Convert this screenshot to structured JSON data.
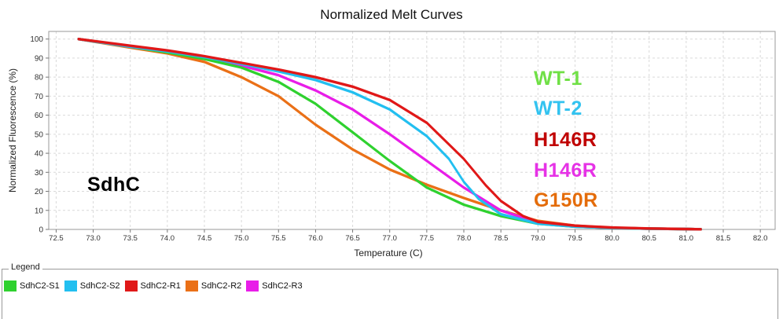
{
  "chart_data": {
    "type": "line",
    "title": "Normalized Melt Curves",
    "xlabel": "Temperature (C)",
    "ylabel": "Normalized Fluorescence (%)",
    "xlim": [
      72.4,
      82.2
    ],
    "ylim": [
      0,
      104
    ],
    "xticks": [
      "72.5",
      "73.0",
      "73.5",
      "74.0",
      "74.5",
      "75.0",
      "75.5",
      "76.0",
      "76.5",
      "77.0",
      "77.5",
      "78.0",
      "78.5",
      "79.0",
      "79.5",
      "80.0",
      "80.5",
      "81.0",
      "81.5",
      "82.0"
    ],
    "yticks": [
      "0",
      "10",
      "20",
      "30",
      "40",
      "50",
      "60",
      "70",
      "80",
      "90",
      "100"
    ],
    "grid": true,
    "series": [
      {
        "name": "SdhC2-S1",
        "color": "#2fd12f",
        "x": [
          72.8,
          73.5,
          74.0,
          74.5,
          75.0,
          75.5,
          76.0,
          76.5,
          77.0,
          77.5,
          78.0,
          78.5,
          79.0,
          79.5,
          80.0,
          80.5,
          81.0,
          81.2
        ],
        "y": [
          100,
          96,
          93,
          89.5,
          85,
          77.5,
          66,
          51,
          36,
          22,
          13,
          7,
          3,
          1.5,
          0.8,
          0.4,
          0.2,
          0.1
        ]
      },
      {
        "name": "SdhC2-S2",
        "color": "#22bff0",
        "x": [
          72.8,
          73.5,
          74.0,
          74.5,
          75.0,
          75.5,
          76.0,
          76.5,
          77.0,
          77.5,
          77.8,
          78.0,
          78.2,
          78.5,
          79.0,
          79.5,
          80.0,
          80.5,
          81.0,
          81.2
        ],
        "y": [
          100,
          96,
          93.5,
          90.5,
          87,
          83,
          78.5,
          72,
          63,
          49,
          37,
          25,
          16,
          8,
          3,
          1.5,
          0.8,
          0.4,
          0.2,
          0.1
        ]
      },
      {
        "name": "SdhC2-R1",
        "color": "#e01818",
        "x": [
          72.8,
          73.5,
          74.0,
          74.5,
          75.0,
          75.5,
          76.0,
          76.5,
          77.0,
          77.5,
          78.0,
          78.3,
          78.5,
          78.8,
          79.0,
          79.5,
          80.0,
          80.5,
          81.0,
          81.2
        ],
        "y": [
          100,
          96.5,
          94,
          91,
          87.5,
          84,
          80,
          75,
          68,
          56,
          37,
          23,
          15,
          7,
          4,
          2,
          1,
          0.5,
          0.2,
          0.1
        ]
      },
      {
        "name": "SdhC2-R2",
        "color": "#ea7017",
        "x": [
          72.8,
          73.5,
          74.0,
          74.5,
          75.0,
          75.5,
          76.0,
          76.5,
          77.0,
          77.5,
          78.0,
          78.5,
          79.0,
          79.5,
          80.0,
          80.5,
          81.0,
          81.2
        ],
        "y": [
          100,
          95.5,
          92.5,
          88,
          80,
          70,
          55,
          42,
          31.5,
          23.5,
          16.5,
          10,
          4.5,
          2,
          0.8,
          0.4,
          0.2,
          0.1
        ]
      },
      {
        "name": "SdhC2-R3",
        "color": "#e81de8",
        "x": [
          72.8,
          73.5,
          74.0,
          74.5,
          75.0,
          75.5,
          76.0,
          76.5,
          77.0,
          77.5,
          78.0,
          78.5,
          79.0,
          79.5,
          80.0,
          80.5,
          81.0,
          81.2
        ],
        "y": [
          100,
          96,
          93.5,
          90,
          86,
          81,
          73,
          63,
          50,
          36,
          22,
          10,
          3.5,
          1.5,
          0.8,
          0.4,
          0.2,
          0.1
        ]
      }
    ],
    "annotations": [
      {
        "text": "SdhC",
        "color": "#000000"
      },
      {
        "text": "WT-1",
        "color": "#70e046"
      },
      {
        "text": "WT-2",
        "color": "#33c3f0"
      },
      {
        "text": "H146R",
        "color": "#c00000"
      },
      {
        "text": "H146R",
        "color": "#e632e6"
      },
      {
        "text": "G150R",
        "color": "#e46c0a"
      }
    ]
  },
  "legend": {
    "title": "Legend",
    "items": [
      {
        "label": "SdhC2-S1",
        "color": "#2fd12f"
      },
      {
        "label": "SdhC2-S2",
        "color": "#22bff0"
      },
      {
        "label": "SdhC2-R1",
        "color": "#e01818"
      },
      {
        "label": "SdhC2-R2",
        "color": "#ea7017"
      },
      {
        "label": "SdhC2-R3",
        "color": "#e81de8"
      }
    ]
  }
}
